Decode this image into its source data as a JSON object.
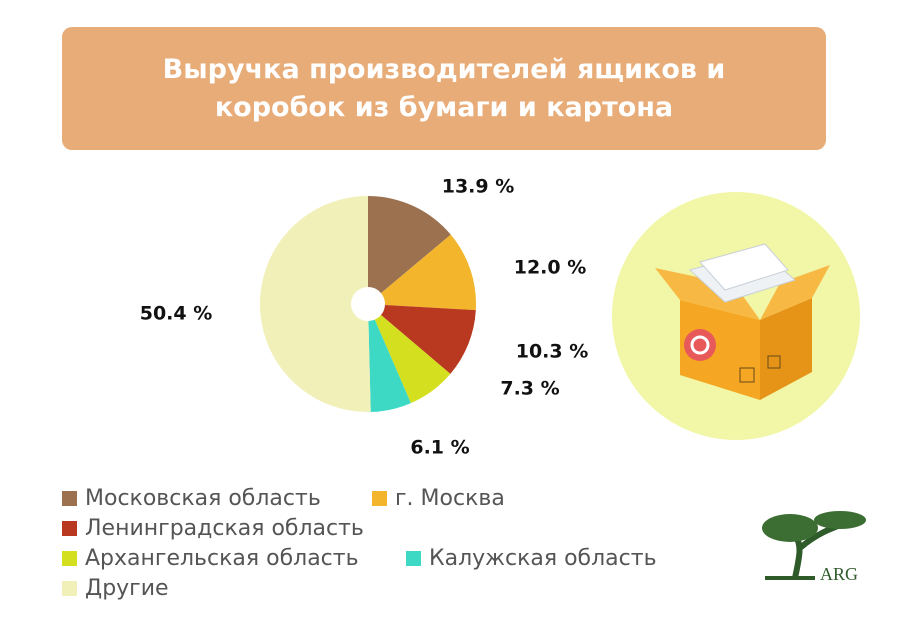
{
  "chart_data": {
    "type": "pie",
    "title": "Выручка производителей ящиков и коробок из бумаги и картона",
    "categories": [
      "Московская область",
      "г. Москва",
      "Ленинградская область",
      "Архангельская область",
      "Калужская область",
      "Другие"
    ],
    "values": [
      13.9,
      12.0,
      10.3,
      7.3,
      6.1,
      50.4
    ],
    "value_labels": [
      "13.9 %",
      "12.0 %",
      "10.3 %",
      "7.3 %",
      "6.1 %",
      "50.4 %"
    ],
    "colors": [
      "#9b7150",
      "#f2b52b",
      "#b8391f",
      "#d4df1f",
      "#3dd9c5",
      "#f0f0b8"
    ]
  },
  "logo": "ARG"
}
